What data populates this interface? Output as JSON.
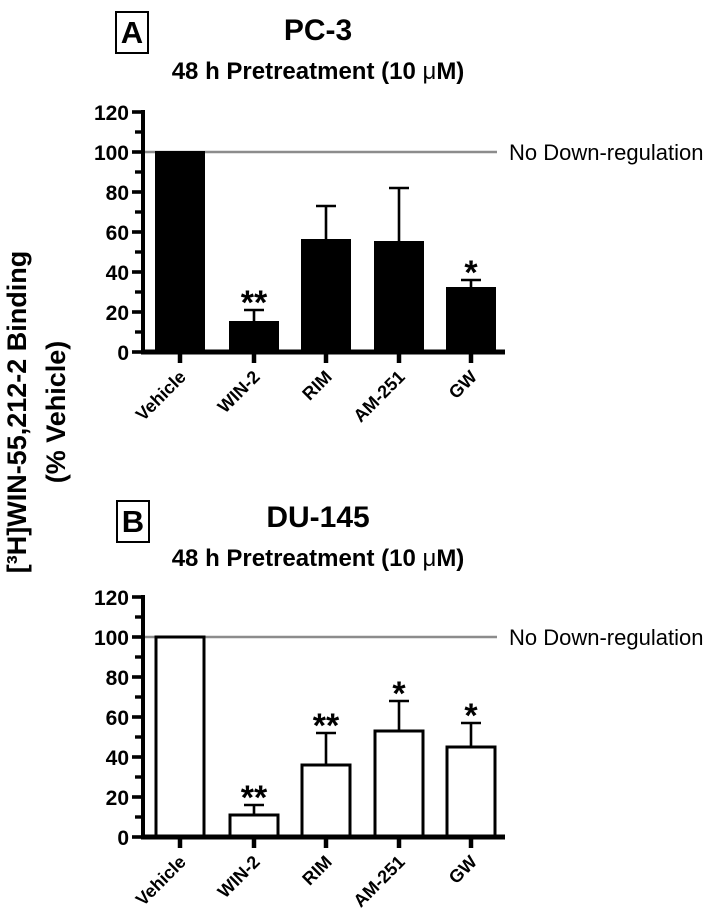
{
  "figure": {
    "background": "#ffffff",
    "y_axis_label_line1": "[³H]WIN-55,212-2 Binding",
    "y_axis_label_line2": "(% Vehicle)"
  },
  "panels": [
    {
      "letter": "A",
      "title": "PC-3",
      "subtitle_prefix": "48 h Pretreatment (10 ",
      "subtitle_mu": "μ",
      "subtitle_suffix": "M)"
    },
    {
      "letter": "B",
      "title": "DU-145",
      "subtitle_prefix": "48 h Pretreatment (10 ",
      "subtitle_mu": "μ",
      "subtitle_suffix": "M)"
    }
  ],
  "chart_data": [
    {
      "type": "bar",
      "panel": "A",
      "title": "PC-3",
      "subtitle": "48 h Pretreatment (10 μM)",
      "ylabel": "[3H]WIN-55,212-2 Binding (% Vehicle)",
      "categories": [
        "Vehicle",
        "WIN-2",
        "RIM",
        "AM-251",
        "GW"
      ],
      "values": [
        100,
        15,
        56,
        55,
        32
      ],
      "errors_plus": [
        0,
        6,
        17,
        27,
        4
      ],
      "significance": [
        "",
        "**",
        "",
        "",
        "*"
      ],
      "ylim": [
        0,
        120
      ],
      "ytick_step": 20,
      "grid": "off",
      "bar_fill": "#000000",
      "bar_stroke": "#000000",
      "reference_line": {
        "y": 100,
        "label": "No Down-regulation",
        "color": "#8c8c8c"
      }
    },
    {
      "type": "bar",
      "panel": "B",
      "title": "DU-145",
      "subtitle": "48 h Pretreatment (10 μM)",
      "ylabel": "[3H]WIN-55,212-2 Binding (% Vehicle)",
      "categories": [
        "Vehicle",
        "WIN-2",
        "RIM",
        "AM-251",
        "GW"
      ],
      "values": [
        100,
        11,
        36,
        53,
        45
      ],
      "errors_plus": [
        0,
        5,
        16,
        15,
        12
      ],
      "significance": [
        "",
        "**",
        "**",
        "*",
        "*"
      ],
      "ylim": [
        0,
        120
      ],
      "ytick_step": 20,
      "grid": "off",
      "bar_fill": "#ffffff",
      "bar_stroke": "#000000",
      "reference_line": {
        "y": 100,
        "label": "No Down-regulation",
        "color": "#8c8c8c"
      }
    }
  ]
}
